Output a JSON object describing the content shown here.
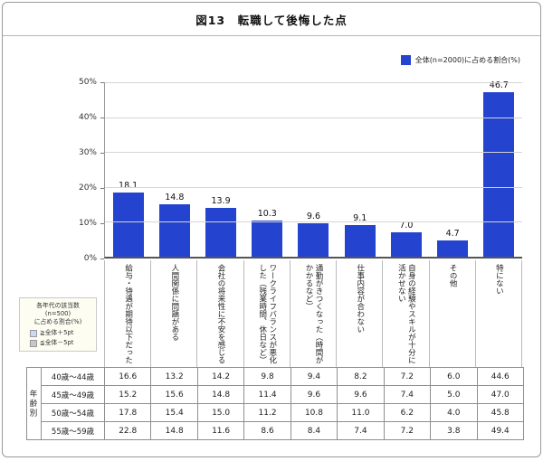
{
  "title": "図13　転職して後悔した点",
  "legend": {
    "label": "全体(n=2000)に占める割合(%)",
    "color": "#2443cf"
  },
  "side_note": {
    "line1": "各年代の該当数",
    "line2": "(n=500)",
    "line3": "に占める割合(%)",
    "items": [
      {
        "label": "≧全体＋5pt",
        "color": "#ccd8f5"
      },
      {
        "label": "≦全体－5pt",
        "color": "#c8c8c8"
      }
    ]
  },
  "row_group_header": "年齢別",
  "chart_data": {
    "type": "bar",
    "title": "図13 転職して後悔した点",
    "xlabel": "",
    "ylabel": "全体(n=2000)に占める割合(%)",
    "ylim": [
      0,
      50
    ],
    "yticks": [
      {
        "label": "50%",
        "value": 50
      },
      {
        "label": "40%",
        "value": 40
      },
      {
        "label": "30%",
        "value": 30
      },
      {
        "label": "20%",
        "value": 20
      },
      {
        "label": "10%",
        "value": 10
      },
      {
        "label": "0%",
        "value": 0
      }
    ],
    "grid": true,
    "legend_position": "top-right",
    "bar_color": "#2443cf",
    "categories": [
      "給与・待遇が期待以下だった",
      "人間関係に問題がある",
      "会社の将来性に不安を感じる",
      "ワークライフバランスが悪化した（残業時間、休日など）",
      "通勤がきつくなった（時間がかかるなど）",
      "仕事内容が合わない",
      "自身の経験やスキルが十分に活かせない",
      "その他",
      "特にない"
    ],
    "values": [
      18.1,
      14.8,
      13.9,
      10.3,
      9.6,
      9.1,
      7.0,
      4.7,
      46.7
    ],
    "table": {
      "rows": [
        {
          "label": "40歳〜44歳",
          "values": [
            16.6,
            13.2,
            14.2,
            9.8,
            9.4,
            8.2,
            7.2,
            6.0,
            44.6
          ]
        },
        {
          "label": "45歳〜49歳",
          "values": [
            15.2,
            15.6,
            14.8,
            11.4,
            9.6,
            9.6,
            7.4,
            5.0,
            47.0
          ]
        },
        {
          "label": "50歳〜54歳",
          "values": [
            17.8,
            15.4,
            15.0,
            11.2,
            10.8,
            11.0,
            6.2,
            4.0,
            45.8
          ]
        },
        {
          "label": "55歳〜59歳",
          "values": [
            22.8,
            14.8,
            11.6,
            8.6,
            8.4,
            7.4,
            7.2,
            3.8,
            49.4
          ]
        }
      ]
    }
  }
}
